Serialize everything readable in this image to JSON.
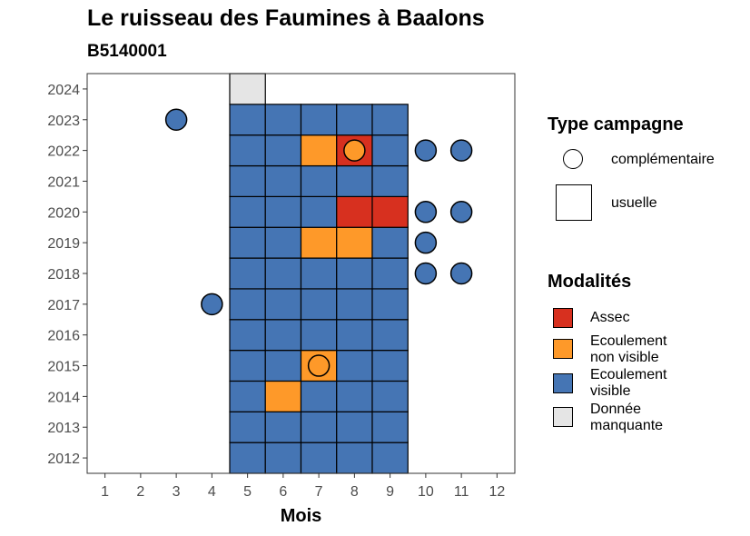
{
  "title": "Le ruisseau des Faumines à Baalons",
  "subtitle": "B5140001",
  "chart_data": {
    "type": "heatmap",
    "xlabel": "Mois",
    "ylabel": "",
    "x_ticks": [
      "1",
      "2",
      "3",
      "4",
      "5",
      "6",
      "7",
      "8",
      "9",
      "10",
      "11",
      "12"
    ],
    "y_ticks": [
      "2012",
      "2013",
      "2014",
      "2015",
      "2016",
      "2017",
      "2018",
      "2019",
      "2020",
      "2021",
      "2022",
      "2023",
      "2024"
    ],
    "xlim": [
      0.5,
      12.5
    ],
    "ylim": [
      2011.5,
      2024.5
    ],
    "colors": {
      "Assec": "#d7301f",
      "Ecoulement non visible": "#fe9929",
      "Ecoulement visible": "#4575b4",
      "Donnée manquante": "#e5e5e5"
    },
    "usuelle": [
      {
        "year": 2012,
        "month": 5,
        "modalite": "Ecoulement visible"
      },
      {
        "year": 2012,
        "month": 6,
        "modalite": "Ecoulement visible"
      },
      {
        "year": 2012,
        "month": 7,
        "modalite": "Ecoulement visible"
      },
      {
        "year": 2012,
        "month": 8,
        "modalite": "Ecoulement visible"
      },
      {
        "year": 2012,
        "month": 9,
        "modalite": "Ecoulement visible"
      },
      {
        "year": 2013,
        "month": 5,
        "modalite": "Ecoulement visible"
      },
      {
        "year": 2013,
        "month": 6,
        "modalite": "Ecoulement visible"
      },
      {
        "year": 2013,
        "month": 7,
        "modalite": "Ecoulement visible"
      },
      {
        "year": 2013,
        "month": 8,
        "modalite": "Ecoulement visible"
      },
      {
        "year": 2013,
        "month": 9,
        "modalite": "Ecoulement visible"
      },
      {
        "year": 2014,
        "month": 5,
        "modalite": "Ecoulement visible"
      },
      {
        "year": 2014,
        "month": 6,
        "modalite": "Ecoulement non visible"
      },
      {
        "year": 2014,
        "month": 7,
        "modalite": "Ecoulement visible"
      },
      {
        "year": 2014,
        "month": 8,
        "modalite": "Ecoulement visible"
      },
      {
        "year": 2014,
        "month": 9,
        "modalite": "Ecoulement visible"
      },
      {
        "year": 2015,
        "month": 5,
        "modalite": "Ecoulement visible"
      },
      {
        "year": 2015,
        "month": 6,
        "modalite": "Ecoulement visible"
      },
      {
        "year": 2015,
        "month": 7,
        "modalite": "Ecoulement non visible"
      },
      {
        "year": 2015,
        "month": 8,
        "modalite": "Ecoulement visible"
      },
      {
        "year": 2015,
        "month": 9,
        "modalite": "Ecoulement visible"
      },
      {
        "year": 2016,
        "month": 5,
        "modalite": "Ecoulement visible"
      },
      {
        "year": 2016,
        "month": 6,
        "modalite": "Ecoulement visible"
      },
      {
        "year": 2016,
        "month": 7,
        "modalite": "Ecoulement visible"
      },
      {
        "year": 2016,
        "month": 8,
        "modalite": "Ecoulement visible"
      },
      {
        "year": 2016,
        "month": 9,
        "modalite": "Ecoulement visible"
      },
      {
        "year": 2017,
        "month": 5,
        "modalite": "Ecoulement visible"
      },
      {
        "year": 2017,
        "month": 6,
        "modalite": "Ecoulement visible"
      },
      {
        "year": 2017,
        "month": 7,
        "modalite": "Ecoulement visible"
      },
      {
        "year": 2017,
        "month": 8,
        "modalite": "Ecoulement visible"
      },
      {
        "year": 2017,
        "month": 9,
        "modalite": "Ecoulement visible"
      },
      {
        "year": 2018,
        "month": 5,
        "modalite": "Ecoulement visible"
      },
      {
        "year": 2018,
        "month": 6,
        "modalite": "Ecoulement visible"
      },
      {
        "year": 2018,
        "month": 7,
        "modalite": "Ecoulement visible"
      },
      {
        "year": 2018,
        "month": 8,
        "modalite": "Ecoulement visible"
      },
      {
        "year": 2018,
        "month": 9,
        "modalite": "Ecoulement visible"
      },
      {
        "year": 2019,
        "month": 5,
        "modalite": "Ecoulement visible"
      },
      {
        "year": 2019,
        "month": 6,
        "modalite": "Ecoulement visible"
      },
      {
        "year": 2019,
        "month": 7,
        "modalite": "Ecoulement non visible"
      },
      {
        "year": 2019,
        "month": 8,
        "modalite": "Ecoulement non visible"
      },
      {
        "year": 2019,
        "month": 9,
        "modalite": "Ecoulement visible"
      },
      {
        "year": 2020,
        "month": 5,
        "modalite": "Ecoulement visible"
      },
      {
        "year": 2020,
        "month": 6,
        "modalite": "Ecoulement visible"
      },
      {
        "year": 2020,
        "month": 7,
        "modalite": "Ecoulement visible"
      },
      {
        "year": 2020,
        "month": 8,
        "modalite": "Assec"
      },
      {
        "year": 2020,
        "month": 9,
        "modalite": "Assec"
      },
      {
        "year": 2021,
        "month": 5,
        "modalite": "Ecoulement visible"
      },
      {
        "year": 2021,
        "month": 6,
        "modalite": "Ecoulement visible"
      },
      {
        "year": 2021,
        "month": 7,
        "modalite": "Ecoulement visible"
      },
      {
        "year": 2021,
        "month": 8,
        "modalite": "Ecoulement visible"
      },
      {
        "year": 2021,
        "month": 9,
        "modalite": "Ecoulement visible"
      },
      {
        "year": 2022,
        "month": 5,
        "modalite": "Ecoulement visible"
      },
      {
        "year": 2022,
        "month": 6,
        "modalite": "Ecoulement visible"
      },
      {
        "year": 2022,
        "month": 7,
        "modalite": "Ecoulement non visible"
      },
      {
        "year": 2022,
        "month": 8,
        "modalite": "Assec"
      },
      {
        "year": 2022,
        "month": 9,
        "modalite": "Ecoulement visible"
      },
      {
        "year": 2023,
        "month": 5,
        "modalite": "Ecoulement visible"
      },
      {
        "year": 2023,
        "month": 6,
        "modalite": "Ecoulement visible"
      },
      {
        "year": 2023,
        "month": 7,
        "modalite": "Ecoulement visible"
      },
      {
        "year": 2023,
        "month": 8,
        "modalite": "Ecoulement visible"
      },
      {
        "year": 2023,
        "month": 9,
        "modalite": "Ecoulement visible"
      },
      {
        "year": 2024,
        "month": 5,
        "modalite": "Donnée manquante"
      }
    ],
    "complementaire": [
      {
        "year": 2023,
        "month": 3,
        "modalite": "Ecoulement visible"
      },
      {
        "year": 2022,
        "month": 8,
        "modalite": "Ecoulement non visible"
      },
      {
        "year": 2022,
        "month": 10,
        "modalite": "Ecoulement visible"
      },
      {
        "year": 2022,
        "month": 11,
        "modalite": "Ecoulement visible"
      },
      {
        "year": 2020,
        "month": 10,
        "modalite": "Ecoulement visible"
      },
      {
        "year": 2020,
        "month": 11,
        "modalite": "Ecoulement visible"
      },
      {
        "year": 2019,
        "month": 10,
        "modalite": "Ecoulement visible"
      },
      {
        "year": 2018,
        "month": 10,
        "modalite": "Ecoulement visible"
      },
      {
        "year": 2018,
        "month": 11,
        "modalite": "Ecoulement visible"
      },
      {
        "year": 2017,
        "month": 4,
        "modalite": "Ecoulement visible"
      },
      {
        "year": 2015,
        "month": 7,
        "modalite": "Ecoulement non visible"
      }
    ]
  },
  "legend": {
    "type_title": "Type campagne",
    "type_items": [
      "complémentaire",
      "usuelle"
    ],
    "mod_title": "Modalités",
    "mod_items": [
      {
        "label_lines": [
          "Assec"
        ],
        "color": "#d7301f"
      },
      {
        "label_lines": [
          "Ecoulement",
          "non visible"
        ],
        "color": "#fe9929"
      },
      {
        "label_lines": [
          "Ecoulement",
          "visible"
        ],
        "color": "#4575b4"
      },
      {
        "label_lines": [
          "Donnée",
          "manquante"
        ],
        "color": "#e5e5e5"
      }
    ]
  }
}
